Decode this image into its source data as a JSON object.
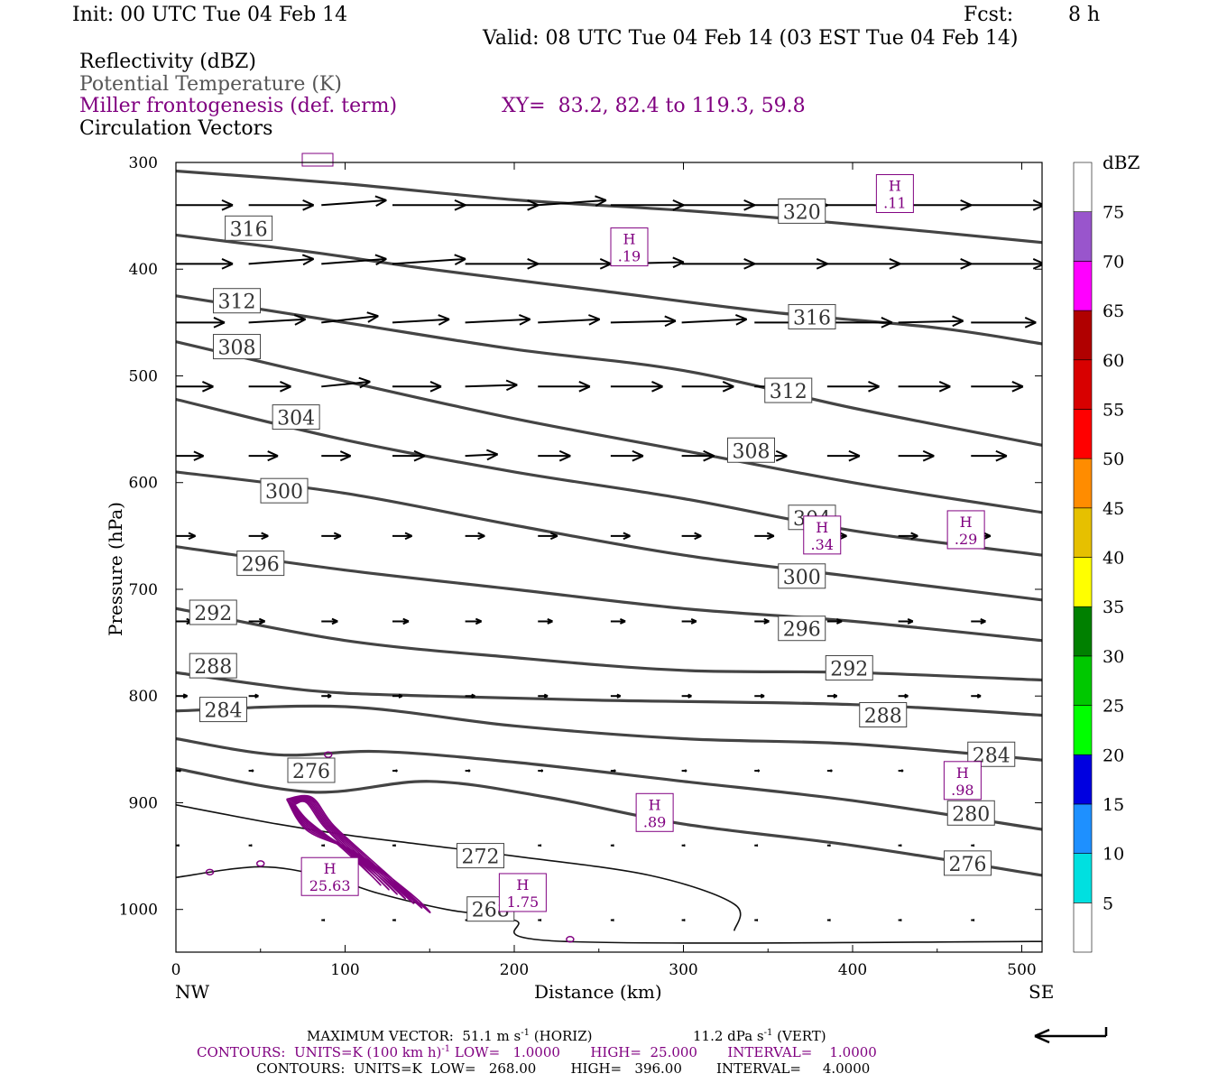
{
  "header": {
    "init": "Init: 00 UTC Tue 04 Feb 14",
    "fcst_label": "Fcst:",
    "fcst_value": "8 h",
    "valid": "Valid: 08 UTC Tue 04 Feb 14 (03 EST Tue 04 Feb 14)"
  },
  "fields": {
    "reflectivity": "Reflectivity (dBZ)",
    "theta": "Potential Temperature (K)",
    "miller": "Miller frontogenesis (def. term)",
    "xy": "XY=  83.2, 82.4 to 119.3, 59.8",
    "vectors": "Circulation Vectors"
  },
  "footer": {
    "max_vector_label": "MAXIMUM VECTOR:  51.1 m s",
    "max_vector_horiz": "(HORIZ)",
    "max_vector_vert_value": "11.2 dPa s",
    "max_vector_vert": "(VERT)",
    "exp": "-1",
    "miller_contours_a": "CONTOURS:  UNITS=K (100 km h)",
    "miller_contours_b": "LOW=   1.0000       HIGH=  25.000       INTERVAL=    1.0000",
    "theta_contours": "CONTOURS:  UNITS=K  LOW=   268.00        HIGH=   396.00        INTERVAL=     4.0000"
  },
  "colors": {
    "theta_line": "#444444",
    "miller": "#800080",
    "vector": "#000000"
  },
  "chart_data": {
    "type": "cross-section",
    "xlabel": "Distance (km)",
    "ylabel": "Pressure (hPa)",
    "xlim": [
      0,
      512
    ],
    "ylim": [
      1040,
      300
    ],
    "x_ticks": [
      0,
      100,
      200,
      300,
      400,
      500
    ],
    "y_ticks": [
      300,
      400,
      500,
      600,
      700,
      800,
      900,
      1000
    ],
    "x_end_labels": {
      "left": "NW",
      "right": "SE"
    },
    "colorbar": {
      "title": "dBZ",
      "levels": [
        5,
        10,
        15,
        20,
        25,
        30,
        35,
        40,
        45,
        50,
        55,
        60,
        65,
        70,
        75
      ],
      "colors": [
        "#ffffff",
        "#00e0e0",
        "#1e90ff",
        "#0000e0",
        "#00ff00",
        "#00c800",
        "#008000",
        "#ffff00",
        "#e6c000",
        "#ff8c00",
        "#ff0000",
        "#d80000",
        "#b00000",
        "#ff00ff",
        "#9955cc",
        "#ffffff"
      ]
    },
    "theta_contours": [
      {
        "value": 320,
        "points": [
          [
            0,
            308
          ],
          [
            100,
            320
          ],
          [
            200,
            335
          ],
          [
            300,
            345
          ],
          [
            400,
            358
          ],
          [
            512,
            375
          ]
        ],
        "label_at": [
          370,
          346
        ]
      },
      {
        "value": 316,
        "points": [
          [
            0,
            368
          ],
          [
            80,
            384
          ],
          [
            150,
            400
          ],
          [
            250,
            420
          ],
          [
            350,
            440
          ],
          [
            450,
            455
          ],
          [
            512,
            470
          ]
        ],
        "label_at": [
          43,
          362
        ],
        "label_at2": [
          376,
          445
        ]
      },
      {
        "value": 312,
        "points": [
          [
            0,
            425
          ],
          [
            100,
            450
          ],
          [
            200,
            475
          ],
          [
            300,
            495
          ],
          [
            400,
            530
          ],
          [
            512,
            565
          ]
        ],
        "label_at": [
          36,
          430
        ],
        "label_at2": [
          362,
          514
        ]
      },
      {
        "value": 308,
        "points": [
          [
            0,
            468
          ],
          [
            100,
            505
          ],
          [
            200,
            540
          ],
          [
            300,
            570
          ],
          [
            400,
            600
          ],
          [
            512,
            628
          ]
        ],
        "label_at": [
          36,
          473
        ],
        "label_at2": [
          340,
          570
        ]
      },
      {
        "value": 304,
        "points": [
          [
            0,
            522
          ],
          [
            100,
            560
          ],
          [
            200,
            590
          ],
          [
            300,
            615
          ],
          [
            400,
            645
          ],
          [
            512,
            668
          ]
        ],
        "label_at": [
          71,
          539
        ],
        "label_at2": [
          376,
          633
        ]
      },
      {
        "value": 300,
        "points": [
          [
            0,
            590
          ],
          [
            100,
            610
          ],
          [
            200,
            640
          ],
          [
            300,
            668
          ],
          [
            400,
            688
          ],
          [
            512,
            710
          ]
        ],
        "label_at": [
          64,
          608
        ],
        "label_at2": [
          370,
          688
        ]
      },
      {
        "value": 296,
        "points": [
          [
            0,
            660
          ],
          [
            100,
            682
          ],
          [
            200,
            700
          ],
          [
            300,
            718
          ],
          [
            400,
            730
          ],
          [
            512,
            748
          ]
        ],
        "label_at": [
          50,
          676
        ],
        "label_at2": [
          370,
          737
        ]
      },
      {
        "value": 292,
        "points": [
          [
            0,
            718
          ],
          [
            100,
            748
          ],
          [
            200,
            764
          ],
          [
            300,
            776
          ],
          [
            400,
            778
          ],
          [
            512,
            785
          ]
        ],
        "label_at": [
          22,
          722
        ],
        "label_at2": [
          398,
          774
        ]
      },
      {
        "value": 288,
        "points": [
          [
            0,
            778
          ],
          [
            80,
            795
          ],
          [
            150,
            800
          ],
          [
            250,
            804
          ],
          [
            400,
            808
          ],
          [
            512,
            818
          ]
        ],
        "label_at": [
          22,
          772
        ],
        "label_at2": [
          418,
          818
        ]
      },
      {
        "value": 284,
        "points": [
          [
            0,
            814
          ],
          [
            100,
            810
          ],
          [
            200,
            828
          ],
          [
            300,
            840
          ],
          [
            400,
            845
          ],
          [
            512,
            860
          ]
        ],
        "label_at": [
          28,
          813
        ],
        "label_at2": [
          482,
          855
        ]
      },
      {
        "value": 280,
        "points": [
          [
            0,
            840
          ],
          [
            60,
            855
          ],
          [
            120,
            852
          ],
          [
            200,
            862
          ],
          [
            300,
            880
          ],
          [
            400,
            898
          ],
          [
            512,
            925
          ]
        ],
        "label_at": [
          470,
          910
        ]
      },
      {
        "value": 276,
        "points": [
          [
            0,
            868
          ],
          [
            80,
            890
          ],
          [
            150,
            880
          ],
          [
            220,
            895
          ],
          [
            300,
            920
          ],
          [
            400,
            940
          ],
          [
            512,
            968
          ]
        ],
        "label_at": [
          80,
          870
        ],
        "label_at2": [
          468,
          957
        ]
      },
      {
        "value": 272,
        "points": [
          [
            0,
            902
          ],
          [
            60,
            920
          ],
          [
            100,
            930
          ],
          [
            150,
            940
          ],
          [
            200,
            950
          ],
          [
            280,
            968
          ],
          [
            330,
            995
          ],
          [
            330,
            1020
          ]
        ],
        "label_at": [
          180,
          950
        ]
      },
      {
        "value": 268,
        "points": [
          [
            0,
            970
          ],
          [
            50,
            960
          ],
          [
            90,
            970
          ],
          [
            120,
            985
          ],
          [
            160,
            1000
          ],
          [
            200,
            1010
          ],
          [
            230,
            1030
          ],
          [
            512,
            1030
          ]
        ],
        "label_at": [
          186,
          1000
        ]
      }
    ],
    "miller_maxima": [
      {
        "value": ".11",
        "x": 425,
        "p": 330
      },
      {
        "value": ".19",
        "x": 268,
        "p": 380
      },
      {
        "value": ".34",
        "x": 382,
        "p": 650
      },
      {
        "value": ".29",
        "x": 467,
        "p": 645
      },
      {
        "value": ".98",
        "x": 465,
        "p": 880
      },
      {
        "value": ".89",
        "x": 283,
        "p": 910
      },
      {
        "value": "25.63",
        "x": 91,
        "p": 970
      },
      {
        "value": "1.75",
        "x": 205,
        "p": 985
      }
    ],
    "vectors": [
      {
        "p": 340,
        "x": [
          0,
          43,
          86,
          128,
          171,
          214,
          257,
          299,
          342,
          385,
          427,
          470
        ],
        "u": [
          3.5,
          4.0,
          4.0,
          4.5,
          4.5,
          4.2,
          4.5,
          4.5,
          4.5,
          4.5,
          4.5,
          4.5
        ],
        "v": [
          0,
          0,
          -0.3,
          0,
          0,
          -0.3,
          0,
          0,
          0,
          0,
          0,
          0
        ]
      },
      {
        "p": 395,
        "x": [
          0,
          43,
          86,
          128,
          171,
          214,
          257,
          299,
          342,
          385,
          427,
          470
        ],
        "u": [
          3.5,
          4.0,
          4.0,
          4.5,
          4.5,
          4.5,
          4.5,
          4.5,
          4.5,
          4.5,
          4.5,
          4.5
        ],
        "v": [
          0,
          -0.3,
          -0.3,
          -0.3,
          0,
          0,
          -0.1,
          0,
          0,
          0,
          0,
          0
        ]
      },
      {
        "p": 450,
        "x": [
          0,
          43,
          86,
          128,
          171,
          214,
          257,
          299,
          342,
          385,
          427,
          470
        ],
        "u": [
          3.0,
          3.5,
          3.5,
          3.5,
          4.0,
          3.8,
          4.0,
          4.0,
          4.0,
          4.0,
          4.0,
          4.0
        ],
        "v": [
          0,
          -0.2,
          -0.4,
          -0.2,
          -0.2,
          -0.2,
          -0.1,
          -0.2,
          0,
          0,
          -0.1,
          0
        ]
      },
      {
        "p": 510,
        "x": [
          0,
          43,
          86,
          128,
          171,
          214,
          257,
          299,
          342,
          385,
          427,
          470
        ],
        "u": [
          2.3,
          2.6,
          3.0,
          3.0,
          3.2,
          3.2,
          3.2,
          3.2,
          3.0,
          3.2,
          3.2,
          3.2
        ],
        "v": [
          0,
          0,
          -0.3,
          0,
          -0.1,
          0,
          0,
          0,
          0,
          0,
          0,
          0
        ]
      },
      {
        "p": 575,
        "x": [
          0,
          43,
          86,
          128,
          171,
          214,
          257,
          299,
          342,
          385,
          427,
          470
        ],
        "u": [
          1.7,
          1.8,
          1.8,
          2.0,
          2.0,
          2.0,
          2.0,
          2.0,
          2.0,
          2.0,
          2.2,
          2.2
        ],
        "v": [
          0,
          0,
          0,
          0,
          -0.1,
          0,
          0,
          0,
          0,
          0,
          0,
          0
        ]
      },
      {
        "p": 650,
        "x": [
          0,
          43,
          86,
          128,
          171,
          214,
          257,
          299,
          342,
          385,
          427,
          470
        ],
        "u": [
          1.2,
          1.2,
          1.2,
          1.2,
          1.2,
          1.2,
          1.2,
          1.2,
          1.2,
          1.2,
          1.2,
          1.2
        ],
        "v": [
          0,
          0,
          0,
          0,
          0,
          0,
          0,
          0,
          0,
          0,
          0,
          0
        ]
      },
      {
        "p": 730,
        "x": [
          0,
          43,
          86,
          128,
          171,
          214,
          257,
          299,
          342,
          385,
          427,
          470
        ],
        "u": [
          1.0,
          1.0,
          1.0,
          1.0,
          1.0,
          0.9,
          0.9,
          0.9,
          0.9,
          0.9,
          0.9,
          0.9
        ],
        "v": [
          0,
          0,
          0,
          0,
          0,
          0,
          0,
          0,
          0,
          0,
          0,
          0
        ]
      },
      {
        "p": 800,
        "x": [
          0,
          43,
          86,
          128,
          171,
          214,
          257,
          299,
          342,
          385,
          427,
          470
        ],
        "u": [
          0.7,
          0.6,
          0.6,
          0.6,
          0.6,
          0.6,
          0.6,
          0.6,
          0.6,
          0.6,
          0.6,
          0.6
        ],
        "v": [
          0,
          0,
          0,
          0,
          0,
          0,
          0,
          0,
          0,
          0,
          0,
          0
        ]
      },
      {
        "p": 870,
        "x": [
          0,
          43,
          86,
          128,
          171,
          214,
          257,
          299,
          342,
          385,
          427,
          470
        ],
        "u": [
          0.3,
          0.3,
          0.3,
          0.3,
          0.3,
          0.3,
          0.3,
          0.3,
          0.3,
          0.3,
          0.3,
          0.3
        ],
        "v": [
          0,
          0,
          0,
          0,
          0,
          0,
          0,
          0,
          0,
          0,
          0,
          0
        ]
      },
      {
        "p": 940,
        "x": [
          0,
          43,
          86,
          128,
          171,
          214,
          257,
          299,
          342,
          385,
          427,
          470
        ],
        "u": [
          0.2,
          0.2,
          0.2,
          0.2,
          0.2,
          0.2,
          0.2,
          0.2,
          0.2,
          0.2,
          0.2,
          0.2
        ],
        "v": [
          0,
          0,
          0,
          0,
          0,
          0,
          0,
          0,
          0,
          0,
          0,
          0
        ]
      },
      {
        "p": 1010,
        "x": [
          86,
          128,
          171,
          214,
          257,
          299,
          342,
          385,
          427,
          470
        ],
        "u": [
          0.2,
          0.2,
          0.2,
          0.2,
          0.2,
          0.2,
          0.2,
          0.2,
          0.2,
          0.2
        ],
        "v": [
          0,
          0,
          0,
          0,
          0,
          0,
          0,
          0,
          0,
          0
        ]
      }
    ]
  }
}
